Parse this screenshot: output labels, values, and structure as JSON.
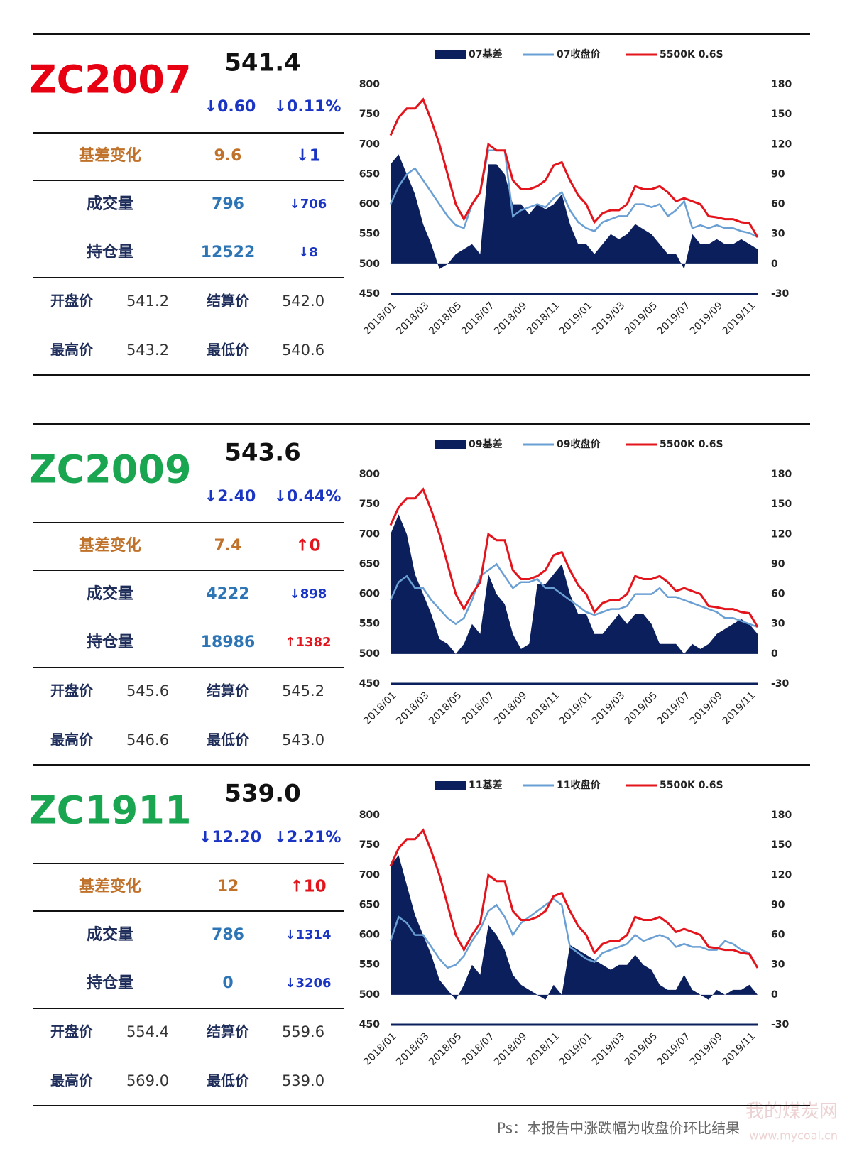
{
  "panels": [
    {
      "contract": "ZC2007",
      "contract_color": "#e60012",
      "price": "541.4",
      "change": "↓0.60",
      "change_pct": "↓0.11%",
      "basis_change": {
        "label": "基差变化",
        "value": "9.6",
        "delta": "↓1"
      },
      "volume": {
        "label": "成交量",
        "value": "796",
        "delta": "↓706"
      },
      "open_interest": {
        "label": "持仓量",
        "value": "12522",
        "delta": "↓8"
      },
      "open": {
        "label": "开盘价",
        "value": "541.2"
      },
      "settle": {
        "label": "结算价",
        "value": "542.0"
      },
      "high": {
        "label": "最高价",
        "value": "543.2"
      },
      "low": {
        "label": "最低价",
        "value": "540.6"
      },
      "chart_data": {
        "type": "combo",
        "categories": [
          "2018/01",
          null,
          null,
          null,
          "2018/03",
          null,
          null,
          null,
          "2018/05",
          null,
          null,
          null,
          "2018/07",
          null,
          null,
          null,
          "2018/09",
          null,
          null,
          null,
          "2018/11",
          null,
          null,
          null,
          "2019/01",
          null,
          null,
          null,
          "2019/03",
          null,
          null,
          null,
          "2019/05",
          null,
          null,
          null,
          "2019/07",
          null,
          null,
          null,
          "2019/09",
          null,
          null,
          null,
          "2019/11",
          null
        ],
        "series": [
          {
            "name": "07基差",
            "type": "area",
            "axis": "y2",
            "color": "#0b1f5c",
            "values": [
              100,
              110,
              90,
              70,
              40,
              20,
              -5,
              0,
              10,
              15,
              20,
              10,
              100,
              100,
              90,
              60,
              60,
              50,
              60,
              55,
              60,
              70,
              40,
              20,
              20,
              10,
              20,
              30,
              25,
              30,
              40,
              35,
              30,
              20,
              10,
              10,
              -5,
              30,
              20,
              20,
              25,
              20,
              20,
              25,
              20,
              15
            ]
          },
          {
            "name": "07收盘价",
            "type": "line",
            "color": "#6a9fd4",
            "values": [
              600,
              630,
              650,
              660,
              640,
              620,
              600,
              580,
              565,
              560,
              600,
              620,
              690,
              690,
              690,
              580,
              590,
              595,
              600,
              595,
              610,
              620,
              590,
              570,
              560,
              555,
              570,
              575,
              580,
              580,
              600,
              600,
              595,
              600,
              580,
              590,
              605,
              560,
              565,
              560,
              565,
              560,
              560,
              555,
              552,
              545
            ]
          },
          {
            "name": "5500K 0.6S",
            "type": "line",
            "color": "#e3141b",
            "values": [
              715,
              745,
              760,
              760,
              775,
              740,
              700,
              650,
              600,
              575,
              600,
              620,
              700,
              690,
              690,
              640,
              625,
              625,
              630,
              640,
              665,
              670,
              640,
              615,
              600,
              570,
              585,
              590,
              590,
              600,
              630,
              625,
              625,
              630,
              620,
              605,
              610,
              605,
              600,
              580,
              578,
              575,
              575,
              570,
              568,
              545
            ]
          }
        ],
        "ylim": [
          450,
          800
        ],
        "yticks": [
          450,
          500,
          550,
          600,
          650,
          700,
          750,
          800
        ],
        "y2lim": [
          -30,
          180
        ],
        "y2ticks": [
          -30,
          0,
          30,
          60,
          90,
          120,
          150,
          180
        ]
      }
    },
    {
      "contract": "ZC2009",
      "contract_color": "#1aa550",
      "price": "543.6",
      "change": "↓2.40",
      "change_pct": "↓0.44%",
      "basis_change": {
        "label": "基差变化",
        "value": "7.4",
        "delta": "↑0"
      },
      "volume": {
        "label": "成交量",
        "value": "4222",
        "delta": "↓898"
      },
      "open_interest": {
        "label": "持仓量",
        "value": "18986",
        "delta": "↑1382"
      },
      "open": {
        "label": "开盘价",
        "value": "545.6"
      },
      "settle": {
        "label": "结算价",
        "value": "545.2"
      },
      "high": {
        "label": "最高价",
        "value": "546.6"
      },
      "low": {
        "label": "最低价",
        "value": "543.0"
      },
      "chart_data": {
        "type": "combo",
        "categories": [
          "2018/01",
          null,
          null,
          null,
          "2018/03",
          null,
          null,
          null,
          "2018/05",
          null,
          null,
          null,
          "2018/07",
          null,
          null,
          null,
          "2018/09",
          null,
          null,
          null,
          "2018/11",
          null,
          null,
          null,
          "2019/01",
          null,
          null,
          null,
          "2019/03",
          null,
          null,
          null,
          "2019/05",
          null,
          null,
          null,
          "2019/07",
          null,
          null,
          null,
          "2019/09",
          null,
          null,
          null,
          "2019/11",
          null
        ],
        "series": [
          {
            "name": "09基差",
            "type": "area",
            "axis": "y2",
            "color": "#0b1f5c",
            "values": [
              120,
              140,
              120,
              80,
              60,
              40,
              15,
              10,
              0,
              10,
              30,
              20,
              80,
              60,
              50,
              20,
              5,
              10,
              70,
              70,
              80,
              90,
              60,
              40,
              40,
              20,
              20,
              30,
              40,
              30,
              40,
              40,
              30,
              10,
              10,
              10,
              0,
              10,
              5,
              10,
              20,
              25,
              30,
              35,
              30,
              20
            ]
          },
          {
            "name": "09收盘价",
            "type": "line",
            "color": "#6a9fd4",
            "values": [
              590,
              620,
              630,
              610,
              610,
              590,
              575,
              560,
              550,
              560,
              590,
              630,
              640,
              650,
              630,
              610,
              620,
              620,
              625,
              610,
              610,
              600,
              590,
              580,
              570,
              565,
              570,
              575,
              575,
              580,
              600,
              600,
              600,
              610,
              595,
              595,
              590,
              585,
              580,
              575,
              570,
              560,
              560,
              555,
              550,
              545
            ]
          },
          {
            "name": "5500K 0.6S",
            "type": "line",
            "color": "#e3141b",
            "values": [
              715,
              745,
              760,
              760,
              775,
              740,
              700,
              650,
              600,
              575,
              600,
              620,
              700,
              690,
              690,
              640,
              625,
              625,
              630,
              640,
              665,
              670,
              640,
              615,
              600,
              570,
              585,
              590,
              590,
              600,
              630,
              625,
              625,
              630,
              620,
              605,
              610,
              605,
              600,
              580,
              578,
              575,
              575,
              570,
              568,
              545
            ]
          }
        ],
        "ylim": [
          450,
          800
        ],
        "yticks": [
          450,
          500,
          550,
          600,
          650,
          700,
          750,
          800
        ],
        "y2lim": [
          -30,
          180
        ],
        "y2ticks": [
          -30,
          0,
          30,
          60,
          90,
          120,
          150,
          180
        ]
      }
    },
    {
      "contract": "ZC1911",
      "contract_color": "#1aa550",
      "price": "539.0",
      "change": "↓12.20",
      "change_pct": "↓2.21%",
      "basis_change": {
        "label": "基差变化",
        "value": "12",
        "delta": "↑10"
      },
      "volume": {
        "label": "成交量",
        "value": "786",
        "delta": "↓1314"
      },
      "open_interest": {
        "label": "持仓量",
        "value": "0",
        "delta": "↓3206"
      },
      "open": {
        "label": "开盘价",
        "value": "554.4"
      },
      "settle": {
        "label": "结算价",
        "value": "559.6"
      },
      "high": {
        "label": "最高价",
        "value": "569.0"
      },
      "low": {
        "label": "最低价",
        "value": "539.0"
      },
      "chart_data": {
        "type": "combo",
        "categories": [
          "2018/01",
          null,
          null,
          null,
          "2018/03",
          null,
          null,
          null,
          "2018/05",
          null,
          null,
          null,
          "2018/07",
          null,
          null,
          null,
          "2018/09",
          null,
          null,
          null,
          "2018/11",
          null,
          null,
          null,
          "2019/01",
          null,
          null,
          null,
          "2019/03",
          null,
          null,
          null,
          "2019/05",
          null,
          null,
          null,
          "2019/07",
          null,
          null,
          null,
          "2019/09",
          null,
          null,
          null,
          "2019/11",
          null
        ],
        "series": [
          {
            "name": "11基差",
            "type": "area",
            "axis": "y2",
            "color": "#0b1f5c",
            "values": [
              130,
              140,
              110,
              80,
              60,
              40,
              15,
              5,
              -5,
              10,
              30,
              20,
              70,
              60,
              45,
              20,
              10,
              5,
              0,
              -5,
              10,
              0,
              50,
              45,
              40,
              35,
              30,
              25,
              30,
              30,
              40,
              30,
              25,
              10,
              5,
              5,
              20,
              5,
              0,
              -5,
              5,
              0,
              5,
              5,
              10,
              0
            ]
          },
          {
            "name": "11收盘价",
            "type": "line",
            "color": "#6a9fd4",
            "values": [
              590,
              630,
              620,
              600,
              600,
              580,
              560,
              545,
              550,
              565,
              590,
              610,
              640,
              650,
              630,
              600,
              620,
              630,
              640,
              650,
              660,
              650,
              580,
              570,
              560,
              555,
              570,
              575,
              580,
              585,
              600,
              590,
              595,
              600,
              595,
              580,
              585,
              580,
              580,
              575,
              575,
              590,
              585,
              575,
              570,
              545
            ]
          },
          {
            "name": "5500K 0.6S",
            "type": "line",
            "color": "#e3141b",
            "values": [
              715,
              745,
              760,
              760,
              775,
              740,
              700,
              650,
              600,
              575,
              600,
              620,
              700,
              690,
              690,
              640,
              625,
              625,
              630,
              640,
              665,
              670,
              640,
              615,
              600,
              570,
              585,
              590,
              590,
              600,
              630,
              625,
              625,
              630,
              620,
              605,
              610,
              605,
              600,
              580,
              578,
              575,
              575,
              570,
              568,
              545
            ]
          }
        ],
        "ylim": [
          450,
          800
        ],
        "yticks": [
          450,
          500,
          550,
          600,
          650,
          700,
          750,
          800
        ],
        "y2lim": [
          -30,
          180
        ],
        "y2ticks": [
          -30,
          0,
          30,
          60,
          90,
          120,
          150,
          180
        ]
      }
    }
  ],
  "footnote": "Ps：本报告中涨跌幅为收盘价环比结果",
  "watermark": [
    "我的煤炭网",
    "www.mycoal.cn"
  ]
}
